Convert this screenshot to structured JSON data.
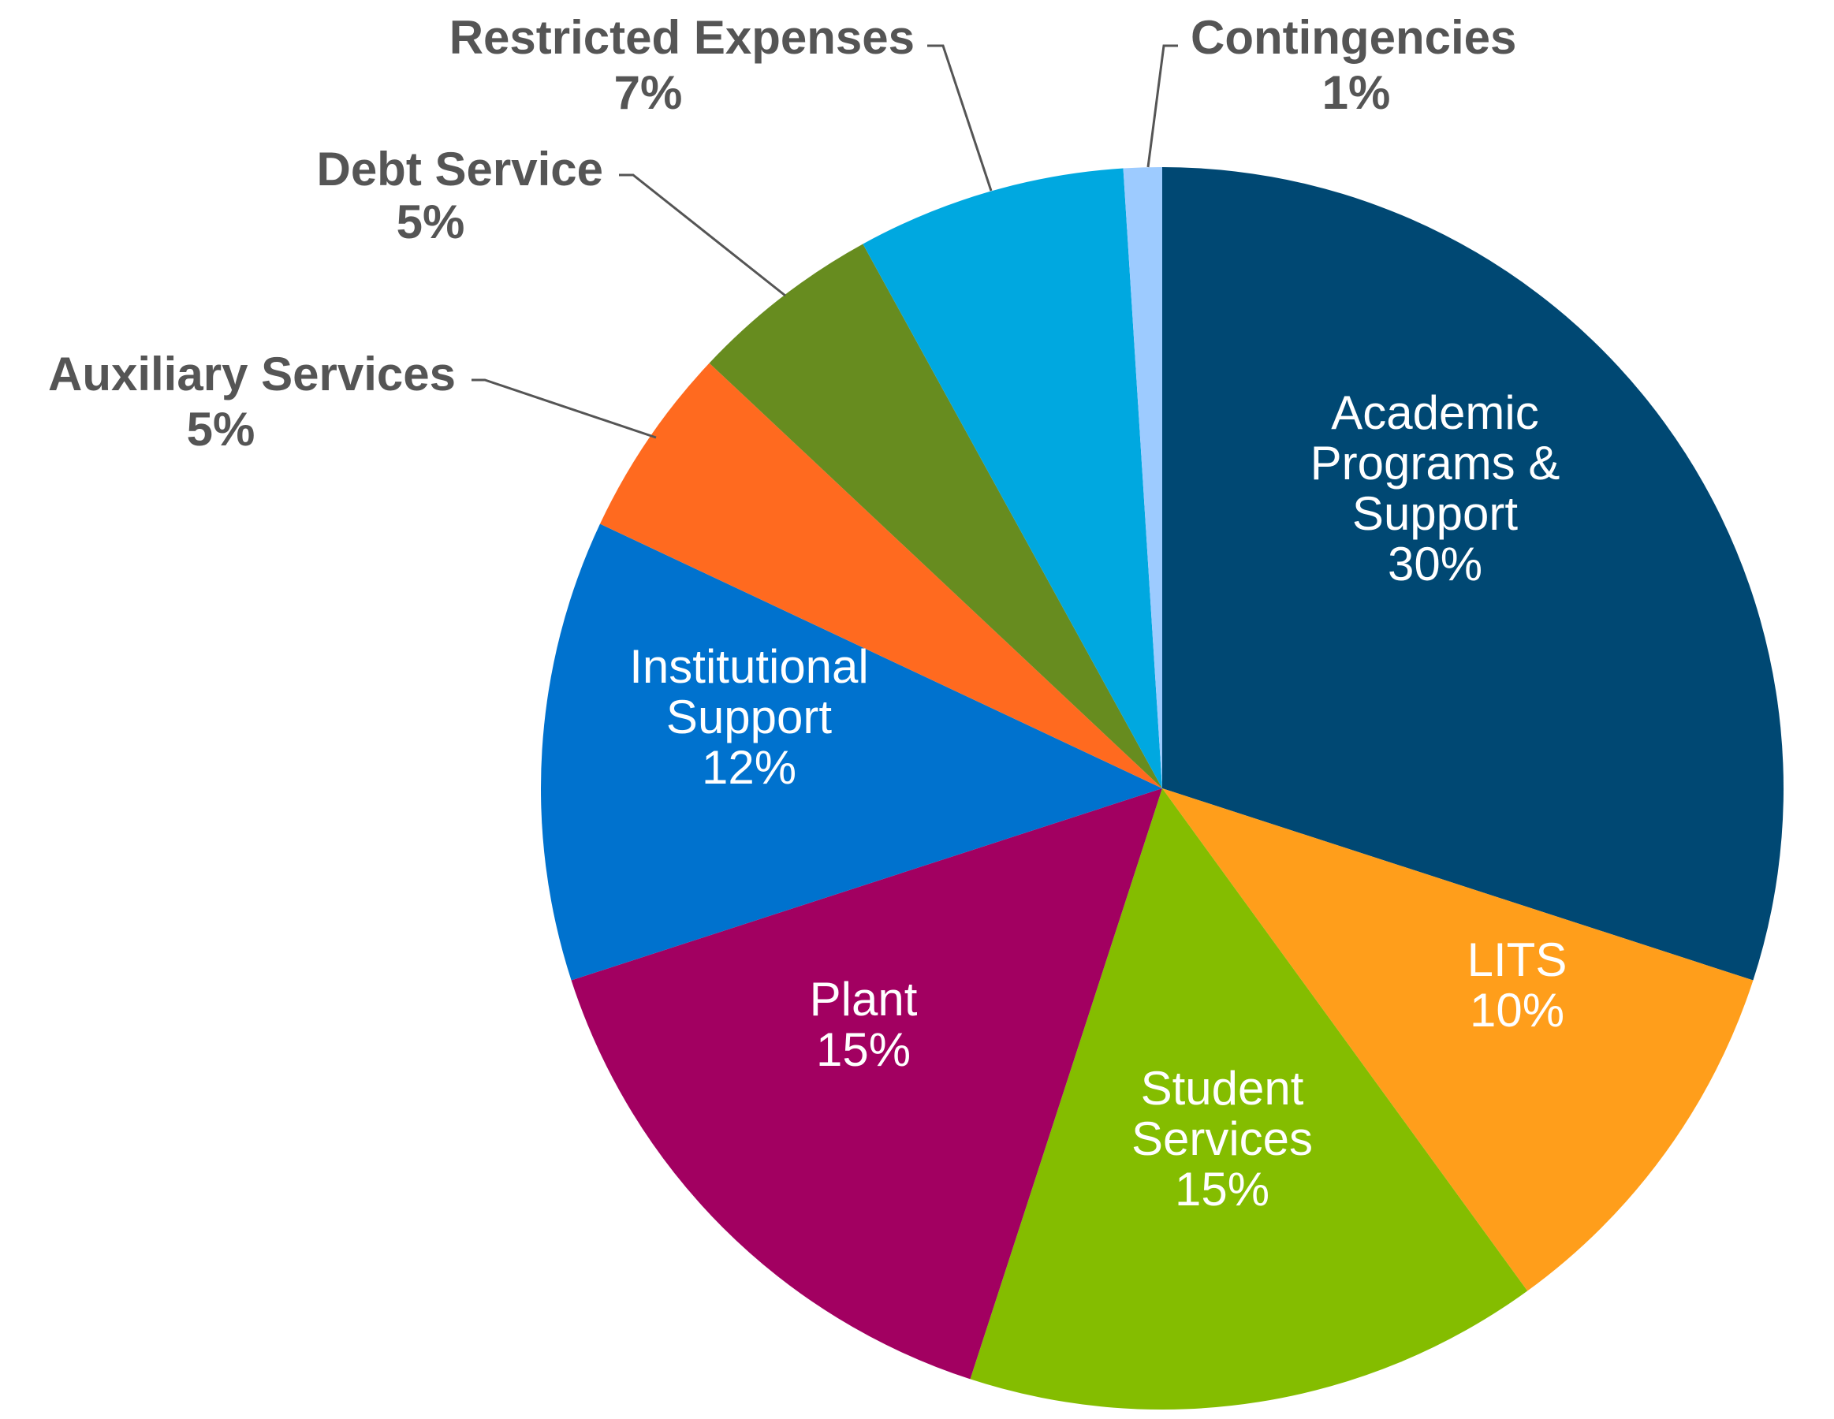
{
  "chart_data": {
    "type": "pie",
    "title": "",
    "slices": [
      {
        "label": "Academic Programs & Support",
        "value_label": "30%",
        "value": 30,
        "color": "#004873"
      },
      {
        "label": "LITS",
        "value_label": "10%",
        "value": 10,
        "color": "#FF9E1B"
      },
      {
        "label": "Student Services",
        "value_label": "15%",
        "value": 15,
        "color": "#84BD00"
      },
      {
        "label": "Plant",
        "value_label": "15%",
        "value": 15,
        "color": "#A20061"
      },
      {
        "label": "Institutional Support",
        "value_label": "12%",
        "value": 12,
        "color": "#0072CE"
      },
      {
        "label": "Auxiliary Services",
        "value_label": "5%",
        "value": 5,
        "color": "#FF6A1F"
      },
      {
        "label": "Debt Service",
        "value_label": "5%",
        "value": 5,
        "color": "#678C1F"
      },
      {
        "label": "Restricted Expenses",
        "value_label": "7%",
        "value": 7,
        "color": "#00A8E0"
      },
      {
        "label": "Contingencies",
        "value_label": "1%",
        "value": 1,
        "color": "#9DCBFF"
      }
    ]
  }
}
